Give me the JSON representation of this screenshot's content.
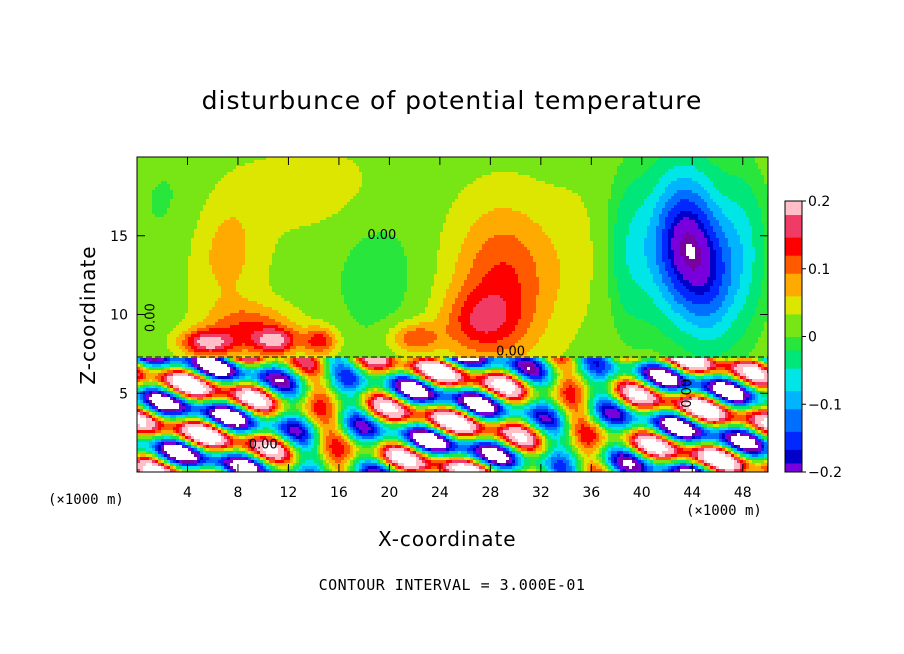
{
  "chart_data": {
    "type": "heatmap",
    "title": "disturbunce of potential temperature",
    "xlabel": "X-coordinate",
    "ylabel": "Z-coordinate",
    "x_unit": "(×1000 m)",
    "x_ticks": [
      4,
      8,
      12,
      16,
      20,
      24,
      28,
      32,
      36,
      40,
      44,
      48
    ],
    "y_ticks": [
      5,
      10,
      15
    ],
    "xlim": [
      0,
      50
    ],
    "ylim": [
      0,
      20
    ],
    "colorbar": {
      "range": [
        -0.2,
        0.2
      ],
      "ticks": [
        {
          "value": 0.2,
          "label": "0.2"
        },
        {
          "value": 0.1,
          "label": "0.1"
        },
        {
          "value": 0,
          "label": "0"
        },
        {
          "value": -0.1,
          "label": "−0.1"
        },
        {
          "value": -0.2,
          "label": "−0.2"
        }
      ]
    },
    "contour_labels": [
      {
        "text": "0.00",
        "x": 19.4,
        "z": 14.8
      },
      {
        "text": "0.00",
        "x": 1.4,
        "z": 9.8
      },
      {
        "text": "0.00",
        "x": 29.6,
        "z": 7.4
      },
      {
        "text": "0.00",
        "x": 10.0,
        "z": 1.5
      },
      {
        "text": "0.00",
        "x": 43.9,
        "z": 5.0
      }
    ],
    "blobs": [
      {
        "x": 3,
        "z": 17,
        "v": -0.02,
        "sx": 4,
        "sz": 4
      },
      {
        "x": 14,
        "z": 18,
        "v": 0.03,
        "sx": 6,
        "sz": 3
      },
      {
        "x": 7,
        "z": 14,
        "v": 0.06,
        "sx": 3,
        "sz": 4
      },
      {
        "x": 9,
        "z": 9,
        "v": 0.1,
        "sx": 3.5,
        "sz": 1.6
      },
      {
        "x": 5.5,
        "z": 8.2,
        "v": 0.16,
        "sx": 2,
        "sz": 0.8
      },
      {
        "x": 11,
        "z": 8.3,
        "v": 0.14,
        "sx": 1.6,
        "sz": 0.8
      },
      {
        "x": 14.5,
        "z": 8.3,
        "v": 0.12,
        "sx": 1.4,
        "sz": 0.9
      },
      {
        "x": 19,
        "z": 12.5,
        "v": -0.03,
        "sx": 3.5,
        "sz": 4.5
      },
      {
        "x": 22,
        "z": 8.5,
        "v": 0.1,
        "sx": 2,
        "sz": 1
      },
      {
        "x": 29,
        "z": 12,
        "v": 0.11,
        "sx": 4,
        "sz": 5
      },
      {
        "x": 27,
        "z": 9.5,
        "v": 0.08,
        "sx": 3,
        "sz": 2
      },
      {
        "x": 35,
        "z": 14,
        "v": 0.02,
        "sx": 3,
        "sz": 5
      },
      {
        "x": 39,
        "z": 14,
        "v": -0.06,
        "sx": 2,
        "sz": 5
      },
      {
        "x": 43.3,
        "z": 14.5,
        "v": -0.22,
        "sx": 2.6,
        "sz": 4.5
      },
      {
        "x": 45.5,
        "z": 12,
        "v": -0.1,
        "sx": 2,
        "sz": 4
      },
      {
        "x": 48,
        "z": 14,
        "v": -0.07,
        "sx": 2,
        "sz": 5
      }
    ],
    "lower_region": {
      "top_z": 7.3,
      "description_free": true
    }
  }
}
